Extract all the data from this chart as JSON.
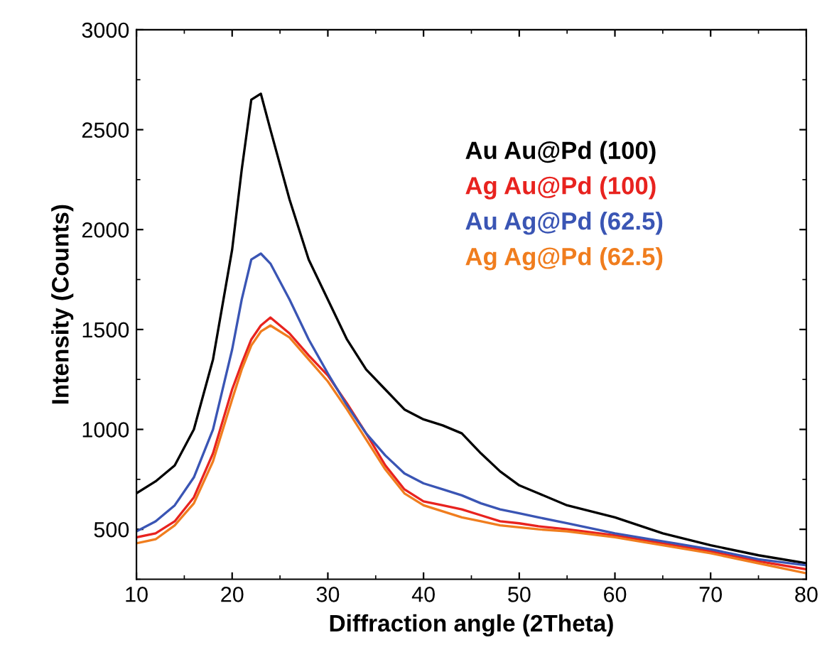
{
  "chart_data": {
    "type": "line",
    "xlabel": "Diffraction angle (2Theta)",
    "ylabel": "Intensity (Counts)",
    "x": [
      10,
      12,
      14,
      16,
      18,
      20,
      21,
      22,
      23,
      24,
      26,
      28,
      30,
      32,
      34,
      36,
      38,
      40,
      42,
      44,
      46,
      48,
      50,
      52,
      55,
      60,
      65,
      70,
      75,
      80
    ],
    "series": [
      {
        "name": "Au Au@Pd (100)",
        "color": "#000000",
        "values": [
          680,
          740,
          820,
          1000,
          1350,
          1900,
          2300,
          2650,
          2680,
          2500,
          2150,
          1850,
          1650,
          1450,
          1300,
          1200,
          1100,
          1050,
          1020,
          980,
          880,
          790,
          720,
          680,
          620,
          560,
          480,
          420,
          370,
          330
        ]
      },
      {
        "name": "Ag Au@Pd (100)",
        "color": "#e8231f",
        "values": [
          460,
          480,
          540,
          660,
          880,
          1200,
          1330,
          1450,
          1520,
          1560,
          1480,
          1370,
          1270,
          1130,
          980,
          820,
          700,
          640,
          620,
          600,
          570,
          540,
          530,
          515,
          500,
          470,
          430,
          390,
          340,
          300
        ]
      },
      {
        "name": "Au Ag@Pd (62.5)",
        "color": "#3a55b4",
        "values": [
          490,
          540,
          620,
          760,
          1000,
          1400,
          1650,
          1850,
          1880,
          1830,
          1650,
          1450,
          1280,
          1120,
          980,
          870,
          780,
          730,
          700,
          670,
          630,
          600,
          580,
          560,
          530,
          480,
          440,
          400,
          350,
          320
        ]
      },
      {
        "name": "Ag Ag@Pd (62.5)",
        "color": "#f07d1e",
        "values": [
          430,
          450,
          520,
          630,
          840,
          1150,
          1300,
          1420,
          1490,
          1520,
          1460,
          1350,
          1240,
          1100,
          950,
          800,
          680,
          620,
          590,
          560,
          540,
          520,
          510,
          500,
          490,
          460,
          420,
          380,
          330,
          280
        ]
      }
    ],
    "xlim": [
      10,
      80
    ],
    "ylim": [
      250,
      3000
    ],
    "xticks": [
      10,
      20,
      30,
      40,
      50,
      60,
      70,
      80
    ],
    "yticks": [
      500,
      1000,
      1500,
      2000,
      2500,
      3000
    ],
    "legend": "right",
    "grid": false,
    "marker": "none",
    "line_style": "solid"
  }
}
